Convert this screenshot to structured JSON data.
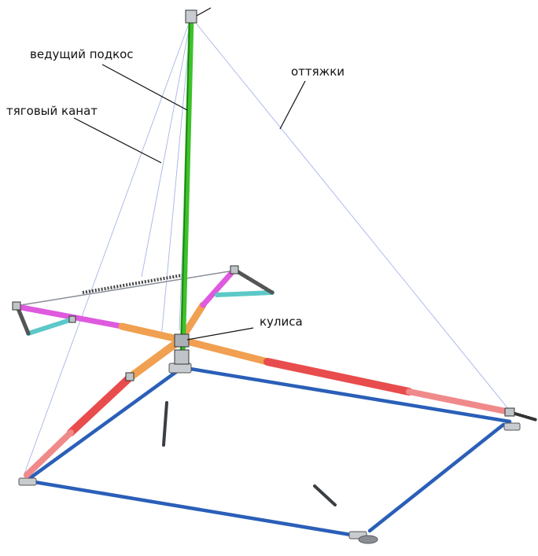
{
  "labels": {
    "lead_strut": "ведущий подкос",
    "guys": "оттяжки",
    "traction_rope": "тяговый канат",
    "rocker": "кулиса"
  },
  "colors": {
    "mast": "#3cc22a",
    "frame": "#2a5fb8",
    "arm_orange": "#f0a050",
    "arm_red": "#e84c4c",
    "arm_magenta": "#de5ade",
    "insulator_cyan": "#5cc8c8",
    "guy_line": "#9aa8e0",
    "rope": "#8890a0"
  }
}
